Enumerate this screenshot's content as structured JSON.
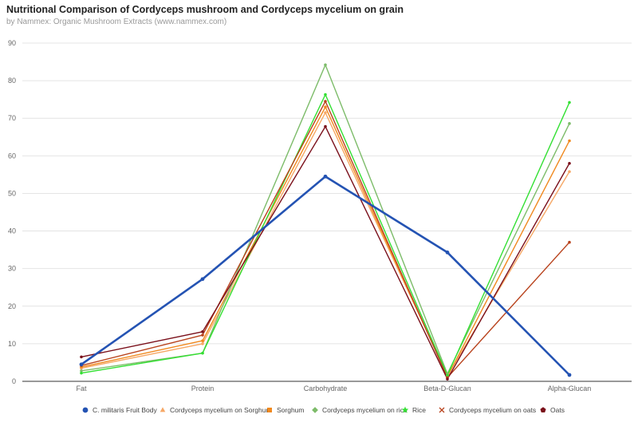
{
  "title": "Nutritional Comparison of Cordyceps mushroom and Cordyceps mycelium on grain",
  "subtitle": "by Nammex: Organic Mushroom Extracts (www.nammex.com)",
  "chart_data": {
    "type": "line",
    "title": "Nutritional Comparison of Cordyceps mushroom and Cordyceps mycelium on grain",
    "subtitle": "by Nammex: Organic Mushroom Extracts (www.nammex.com)",
    "xlabel": "",
    "ylabel": "",
    "ylim": [
      0,
      90
    ],
    "yticks": [
      0,
      10,
      20,
      30,
      40,
      50,
      60,
      70,
      80,
      90
    ],
    "grid": true,
    "legend_position": "bottom",
    "categories": [
      "Fat",
      "Protein",
      "Carbohydrate",
      "Beta-D-Glucan",
      "Alpha-Glucan"
    ],
    "series": [
      {
        "name": "C. militaris Fruit Body",
        "values": [
          4.5,
          27.2,
          54.5,
          34.3,
          1.7
        ],
        "color": "#2453b3",
        "marker": "circle"
      },
      {
        "name": "Cordyceps mycelium on Sorghum",
        "values": [
          3.5,
          10.0,
          71.5,
          1.5,
          55.8
        ],
        "color": "#f6a866",
        "marker": "triangle"
      },
      {
        "name": "Sorghum",
        "values": [
          3.8,
          10.8,
          73.0,
          1.2,
          64.0
        ],
        "color": "#f0891f",
        "marker": "square"
      },
      {
        "name": "Cordyceps mycelium on rice",
        "values": [
          2.8,
          7.5,
          84.2,
          2.0,
          68.6
        ],
        "color": "#7dbc6a",
        "marker": "diamond"
      },
      {
        "name": "Rice",
        "values": [
          2.2,
          7.5,
          76.3,
          1.6,
          74.2
        ],
        "color": "#33e033",
        "marker": "star"
      },
      {
        "name": "Cordyceps mycelium on oats",
        "values": [
          4.2,
          12.3,
          74.5,
          1.0,
          37.0
        ],
        "color": "#b8421c",
        "marker": "x"
      },
      {
        "name": "Oats",
        "values": [
          6.5,
          13.2,
          67.8,
          0.6,
          58.0
        ],
        "color": "#7a0f1a",
        "marker": "pentagon"
      }
    ]
  }
}
